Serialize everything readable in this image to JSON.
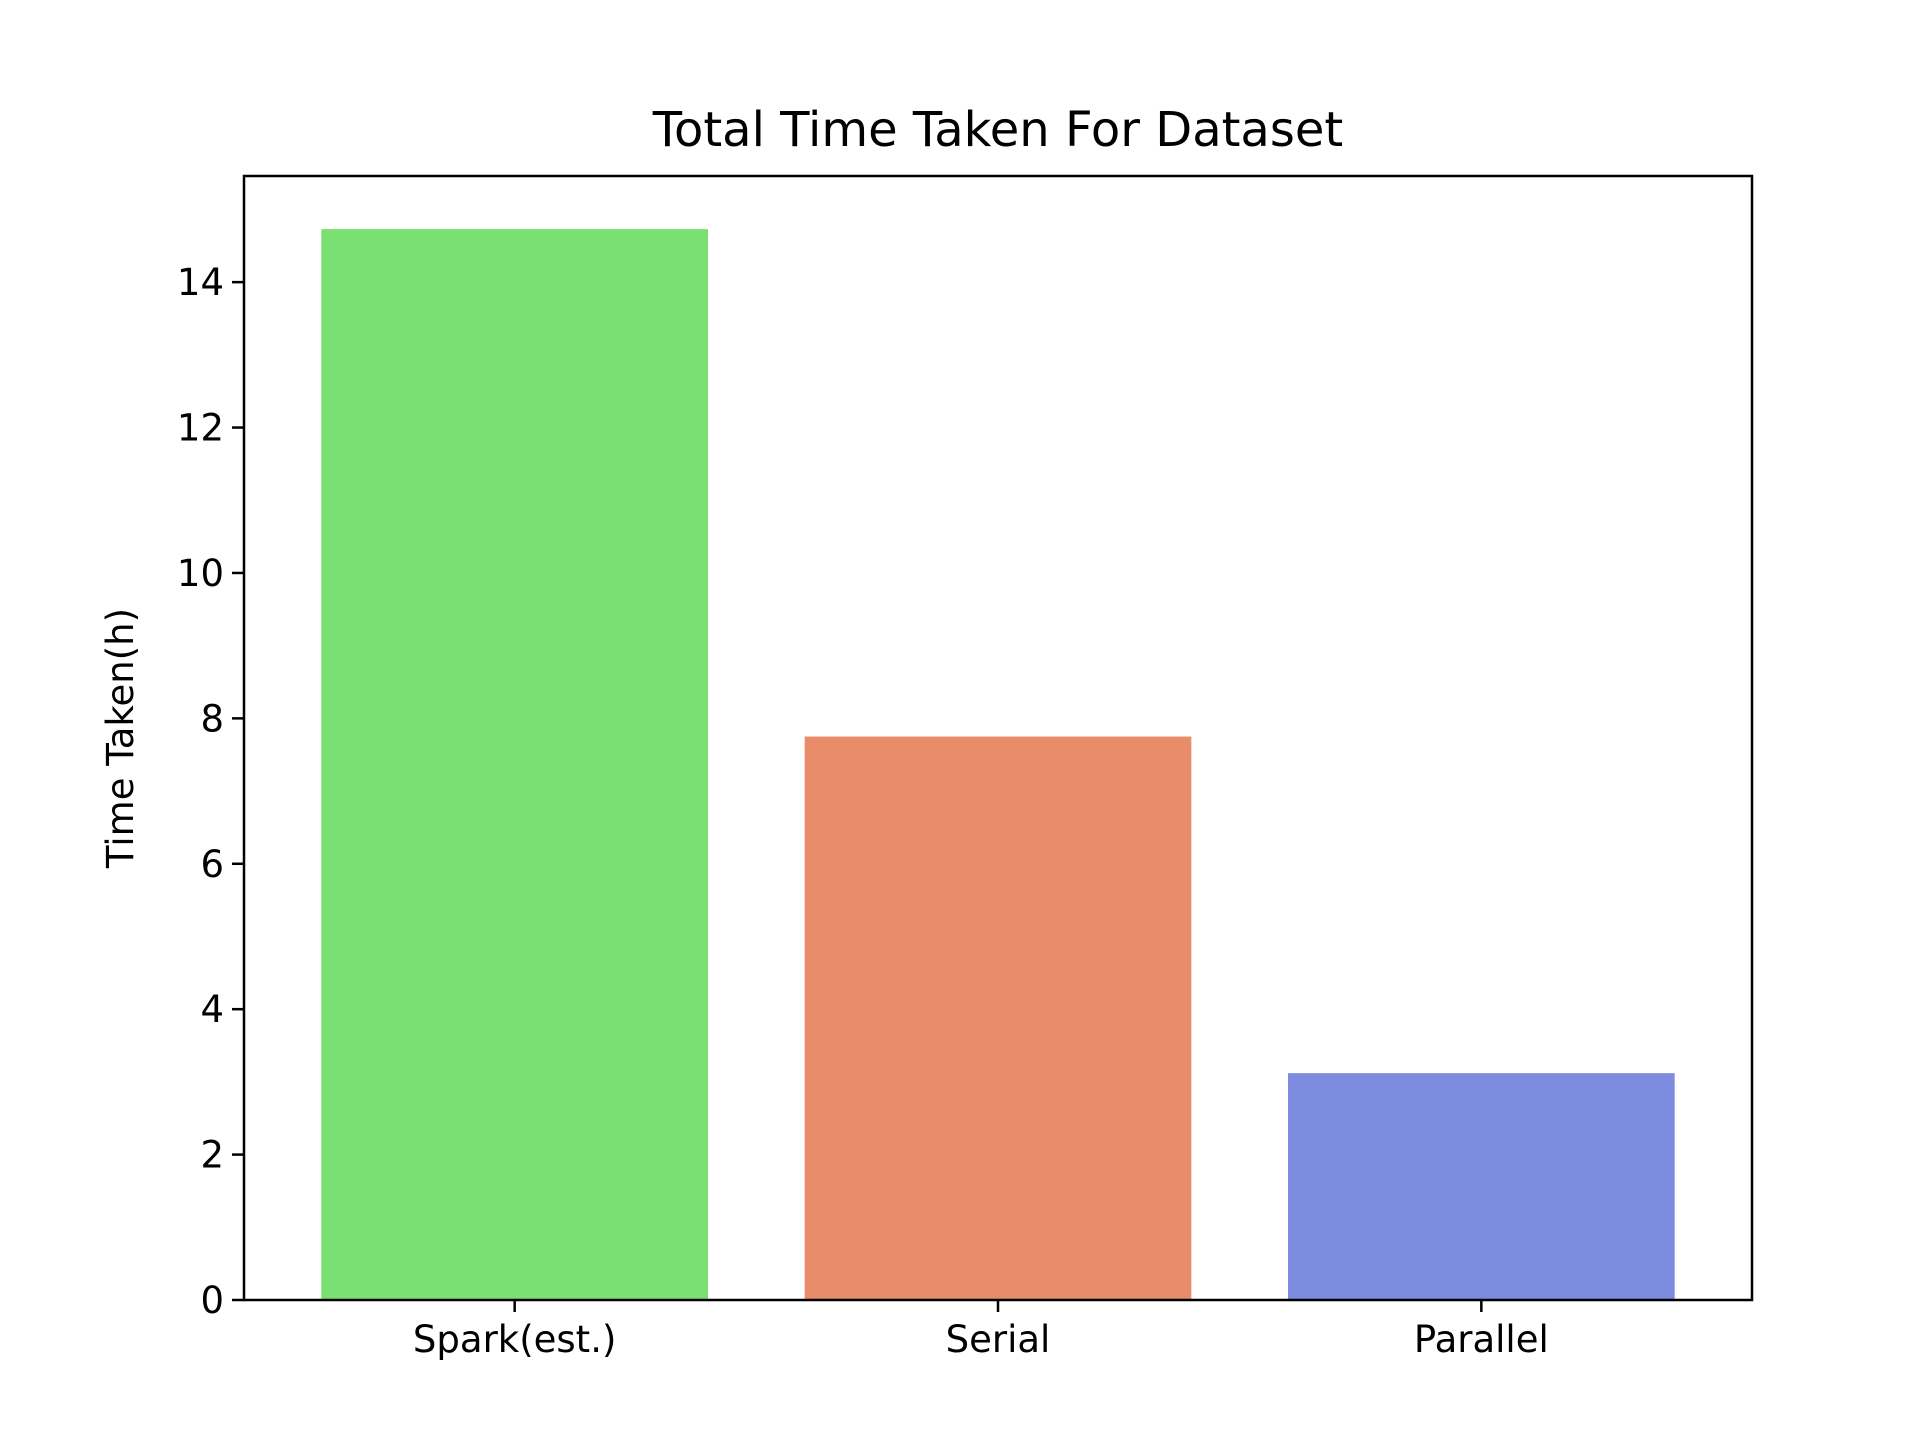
{
  "chart_data": {
    "type": "bar",
    "title": "Total Time Taken For Dataset",
    "xlabel": "",
    "ylabel": "Time Taken(h)",
    "categories": [
      "Spark(est.)",
      "Serial",
      "Parallel"
    ],
    "values": [
      14.73,
      7.75,
      3.12
    ],
    "colors": [
      "#7ae071",
      "#e88c69",
      "#7d8cdf"
    ],
    "ylim": [
      0,
      15.46
    ],
    "yticks": [
      0,
      2,
      4,
      6,
      8,
      10,
      12,
      14
    ],
    "grid": false,
    "legend": "none"
  }
}
